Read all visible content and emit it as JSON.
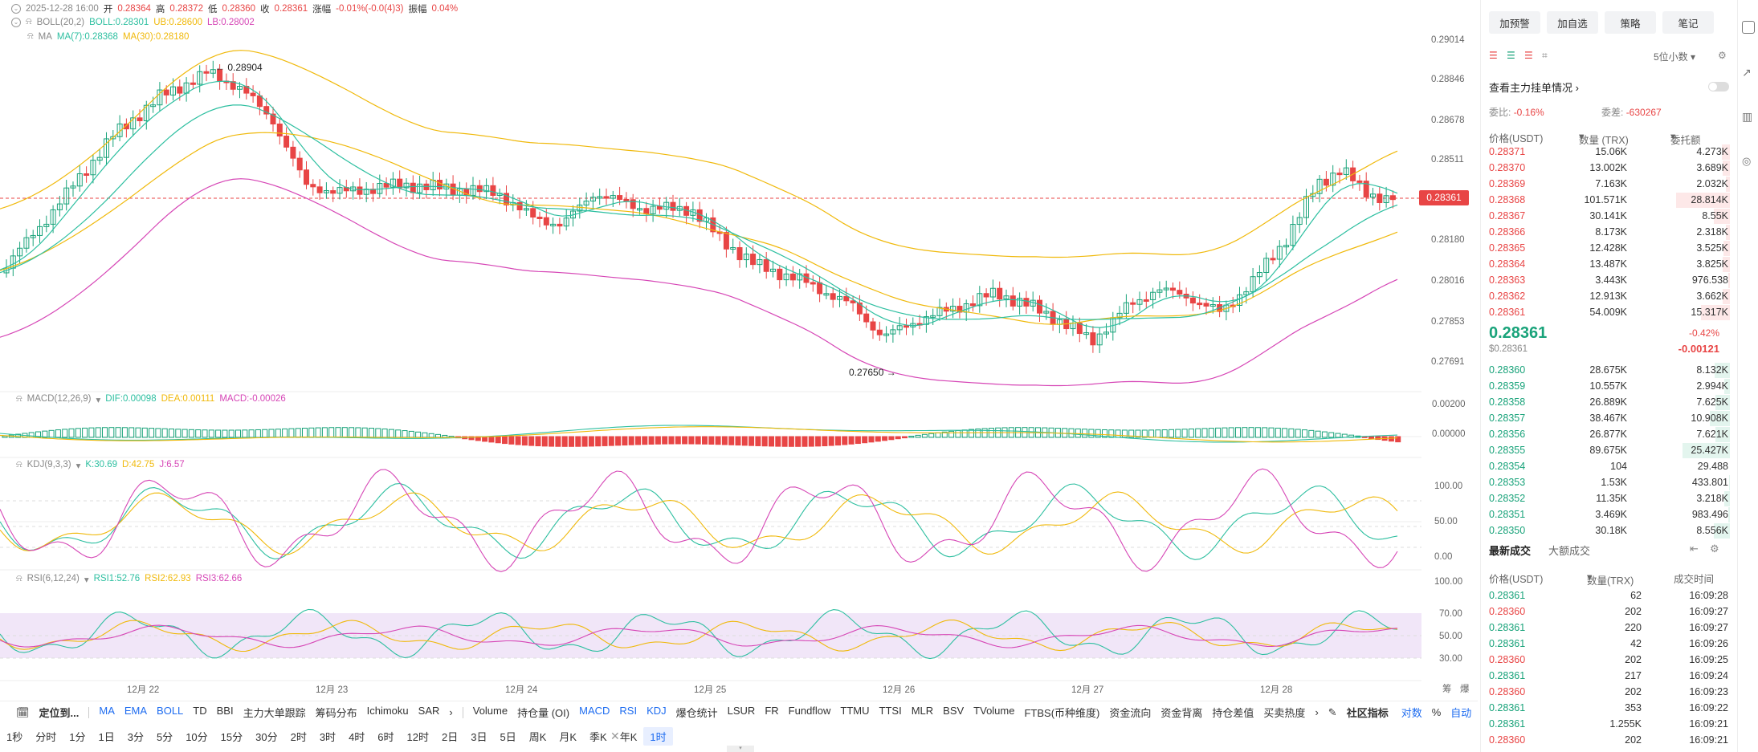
{
  "header": {
    "datetime": "2025-12-28 16:00",
    "open_label": "开",
    "open": "0.28364",
    "high_label": "高",
    "high": "0.28372",
    "low_label": "低",
    "low": "0.28360",
    "close_label": "收",
    "close": "0.28361",
    "change_label": "涨幅",
    "change": "-0.01%(-0.0(4)3)",
    "amp_label": "振幅",
    "amp": "0.04%",
    "boll_name": "BOLL(20,2)",
    "boll": "BOLL:0.28301",
    "ub": "UB:0.28600",
    "lb": "LB:0.28002",
    "ma_name": "MA",
    "ma7": "MA(7):0.28368",
    "ma30": "MA(30):0.28180"
  },
  "price_axis": [
    "0.29014",
    "0.28846",
    "0.28678",
    "0.28511",
    "0.28180",
    "0.28016",
    "0.27853",
    "0.27691"
  ],
  "current_price_tag": "0.28361",
  "annotations": {
    "high": "← 0.28904",
    "low": "0.27650 →"
  },
  "macd": {
    "name": "MACD(12,26,9)",
    "dif": "DIF:0.00098",
    "dea": "DEA:0.00111",
    "macd": "MACD:-0.00026",
    "axis": [
      "0.00200",
      "0.00000"
    ]
  },
  "kdj": {
    "name": "KDJ(9,3,3)",
    "k": "K:30.69",
    "d": "D:42.75",
    "j": "J:6.57",
    "axis": [
      "100.00",
      "50.00",
      "0.00"
    ]
  },
  "rsi": {
    "name": "RSI(6,12,24)",
    "r1": "RSI1:52.76",
    "r2": "RSI2:62.93",
    "r3": "RSI3:62.66",
    "axis": [
      "100.00",
      "70.00",
      "50.00",
      "30.00"
    ]
  },
  "dates": [
    "12月 22",
    "12月 23",
    "12月 24",
    "12月 25",
    "12月 26",
    "12月 27",
    "12月 28"
  ],
  "corner": {
    "a": "筹",
    "b": "爆"
  },
  "indicator_toolbar": {
    "locate": "定位到...",
    "main": [
      "MA",
      "EMA",
      "BOLL",
      "TD",
      "BBI",
      "主力大单跟踪",
      "筹码分布",
      "Ichimoku",
      "SAR"
    ],
    "sub": [
      "Volume",
      "持仓量 (OI)",
      "MACD",
      "RSI",
      "KDJ",
      "爆仓统计",
      "LSUR",
      "FR",
      "Fundflow",
      "TTMU",
      "TTSI",
      "MLR",
      "BSV",
      "TVolume",
      "FTBS(币种维度)",
      "资金流向",
      "资金背离",
      "持仓差值",
      "买卖热度"
    ],
    "community": "社区指标",
    "log": "对数",
    "pct": "%",
    "auto": "自动"
  },
  "timeframes": [
    "1秒",
    "分时",
    "1分",
    "1日",
    "3分",
    "5分",
    "10分",
    "15分",
    "30分",
    "2时",
    "3时",
    "4时",
    "6时",
    "12时",
    "2日",
    "3日",
    "5日",
    "周K",
    "月K",
    "季K",
    "年K",
    "1时"
  ],
  "panel": {
    "buttons": [
      "加预警",
      "加自选",
      "策略",
      "笔记"
    ],
    "decimals": "5位小数",
    "view_main": "查看主力挂单情况",
    "weibi_label": "委比:",
    "weibi": "-0.16%",
    "weicha_label": "委差:",
    "weicha": "-630267",
    "col_price": "价格(USDT)",
    "col_qty": "数量 (TRX)",
    "col_amt": "委托额",
    "asks": [
      [
        "0.28371",
        "15.06K",
        "4.273K"
      ],
      [
        "0.28370",
        "13.002K",
        "3.689K"
      ],
      [
        "0.28369",
        "7.163K",
        "2.032K"
      ],
      [
        "0.28368",
        "101.571K",
        "28.814K"
      ],
      [
        "0.28367",
        "30.141K",
        "8.55K"
      ],
      [
        "0.28366",
        "8.173K",
        "2.318K"
      ],
      [
        "0.28365",
        "12.428K",
        "3.525K"
      ],
      [
        "0.28364",
        "13.487K",
        "3.825K"
      ],
      [
        "0.28363",
        "3.443K",
        "976.538"
      ],
      [
        "0.28362",
        "12.913K",
        "3.662K"
      ],
      [
        "0.28361",
        "54.009K",
        "15.317K"
      ]
    ],
    "last_price": "0.28361",
    "last_usd": "$0.28361",
    "last_pct": "-0.42%",
    "last_chg": "-0.00121",
    "bids": [
      [
        "0.28360",
        "28.675K",
        "8.132K"
      ],
      [
        "0.28359",
        "10.557K",
        "2.994K"
      ],
      [
        "0.28358",
        "26.889K",
        "7.625K"
      ],
      [
        "0.28357",
        "38.467K",
        "10.908K"
      ],
      [
        "0.28356",
        "26.877K",
        "7.621K"
      ],
      [
        "0.28355",
        "89.675K",
        "25.427K"
      ],
      [
        "0.28354",
        "104",
        "29.488"
      ],
      [
        "0.28353",
        "1.53K",
        "433.801"
      ],
      [
        "0.28352",
        "11.35K",
        "3.218K"
      ],
      [
        "0.28351",
        "3.469K",
        "983.496"
      ],
      [
        "0.28350",
        "30.18K",
        "8.556K"
      ]
    ],
    "trades_tab": "最新成交",
    "big_tab": "大额成交",
    "t_col_price": "价格(USDT)",
    "t_col_qty": "数量(TRX)",
    "t_col_time": "成交时间",
    "trades": [
      [
        "0.28361",
        "62",
        "16:09:28",
        "g"
      ],
      [
        "0.28360",
        "202",
        "16:09:27",
        "r"
      ],
      [
        "0.28361",
        "220",
        "16:09:27",
        "g"
      ],
      [
        "0.28361",
        "42",
        "16:09:26",
        "g"
      ],
      [
        "0.28360",
        "202",
        "16:09:25",
        "r"
      ],
      [
        "0.28361",
        "217",
        "16:09:24",
        "g"
      ],
      [
        "0.28360",
        "202",
        "16:09:23",
        "r"
      ],
      [
        "0.28361",
        "353",
        "16:09:22",
        "g"
      ],
      [
        "0.28361",
        "1.255K",
        "16:09:21",
        "g"
      ],
      [
        "0.28360",
        "202",
        "16:09:21",
        "r"
      ]
    ]
  },
  "colors": {
    "up": "#19a37a",
    "down": "#e84545",
    "ma7": "#2dbfa0",
    "ma30": "#f0b90b",
    "boll_ub": "#f0b90b",
    "boll_lb": "#d646b6",
    "accent": "#1e6cf0",
    "price_tag": "#e84545"
  }
}
